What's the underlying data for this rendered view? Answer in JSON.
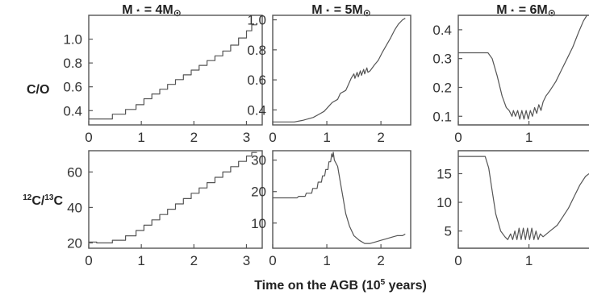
{
  "figure": {
    "xlabel_main": "Time on the AGB (10",
    "xlabel_sup": "5",
    "xlabel_end": " years)",
    "row_labels": [
      {
        "parts": [
          {
            "t": "C/O",
            "sup": false
          }
        ]
      },
      {
        "parts": [
          {
            "t": "12",
            "sup": true
          },
          {
            "t": "C/",
            "sup": false
          },
          {
            "t": "13",
            "sup": true
          },
          {
            "t": "C",
            "sup": false
          }
        ]
      }
    ],
    "column_titles": [
      {
        "pre": "M",
        "star": "⋆",
        "mid": " = 4M",
        "sun": "⊙"
      },
      {
        "pre": "M",
        "star": "⋆",
        "mid": " = 5M",
        "sun": "⊙"
      },
      {
        "pre": "M",
        "star": "⋆",
        "mid": " = 6M",
        "sun": "⊙"
      }
    ]
  },
  "chart_data": [
    {
      "type": "line",
      "panel": "C/O, 4 Msun",
      "xlabel": "Time on the AGB (10^5 years)",
      "ylabel": "C/O",
      "xlim": [
        0,
        3.3
      ],
      "ylim": [
        0.28,
        1.2
      ],
      "xticks": [
        0,
        1,
        2,
        3
      ],
      "yticks": [
        0.4,
        0.6,
        0.8,
        1.0
      ],
      "ytick_labels": [
        "0.4",
        "0.6",
        "0.8",
        "1.0"
      ],
      "series": [
        {
          "kind": "steps",
          "start": [
            0,
            0.33
          ],
          "steps": [
            [
              0.45,
              0.37
            ],
            [
              0.7,
              0.41
            ],
            [
              0.9,
              0.45
            ],
            [
              1.05,
              0.5
            ],
            [
              1.2,
              0.54
            ],
            [
              1.35,
              0.58
            ],
            [
              1.5,
              0.62
            ],
            [
              1.65,
              0.66
            ],
            [
              1.8,
              0.7
            ],
            [
              1.95,
              0.74
            ],
            [
              2.1,
              0.78
            ],
            [
              2.25,
              0.82
            ],
            [
              2.4,
              0.86
            ],
            [
              2.55,
              0.9
            ],
            [
              2.7,
              0.95
            ],
            [
              2.85,
              1.01
            ],
            [
              3.0,
              1.07
            ],
            [
              3.1,
              1.12
            ]
          ],
          "end": 3.2
        }
      ]
    },
    {
      "type": "line",
      "panel": "C/O, 5 Msun",
      "xlabel": "Time on the AGB (10^5 years)",
      "ylabel": "C/O",
      "xlim": [
        0,
        2.55
      ],
      "ylim": [
        0.3,
        1.03
      ],
      "xticks": [
        0,
        1,
        2
      ],
      "yticks": [
        0.4,
        0.6,
        0.8,
        1.0
      ],
      "ytick_labels": [
        "0.4",
        "0.6",
        "0.8",
        "1.0"
      ],
      "series": [
        {
          "kind": "poly",
          "points": [
            [
              0,
              0.32
            ],
            [
              0.4,
              0.32
            ],
            [
              0.55,
              0.33
            ],
            [
              0.75,
              0.35
            ],
            [
              0.85,
              0.37
            ],
            [
              0.95,
              0.39
            ],
            [
              1.05,
              0.43
            ],
            [
              1.1,
              0.45
            ],
            [
              1.2,
              0.47
            ],
            [
              1.25,
              0.51
            ],
            [
              1.35,
              0.53
            ],
            [
              1.4,
              0.57
            ],
            [
              1.45,
              0.61
            ],
            [
              1.5,
              0.64
            ],
            [
              1.52,
              0.61
            ],
            [
              1.56,
              0.65
            ],
            [
              1.58,
              0.62
            ],
            [
              1.62,
              0.66
            ],
            [
              1.64,
              0.63
            ],
            [
              1.68,
              0.67
            ],
            [
              1.7,
              0.64
            ],
            [
              1.74,
              0.68
            ],
            [
              1.76,
              0.65
            ],
            [
              1.8,
              0.66
            ],
            [
              1.88,
              0.7
            ],
            [
              1.95,
              0.73
            ],
            [
              2.02,
              0.78
            ],
            [
              2.1,
              0.83
            ],
            [
              2.18,
              0.88
            ],
            [
              2.25,
              0.93
            ],
            [
              2.32,
              0.97
            ],
            [
              2.4,
              1.0
            ],
            [
              2.45,
              1.01
            ]
          ]
        }
      ]
    },
    {
      "type": "line",
      "panel": "C/O, 6 Msun",
      "xlabel": "Time on the AGB (10^5 years)",
      "ylabel": "C/O",
      "xlim": [
        0,
        1.85
      ],
      "ylim": [
        0.07,
        0.45
      ],
      "xticks": [
        0,
        1
      ],
      "yticks": [
        0.1,
        0.2,
        0.3,
        0.4
      ],
      "ytick_labels": [
        "0.1",
        "0.2",
        "0.3",
        "0.4"
      ],
      "series": [
        {
          "kind": "poly",
          "points": [
            [
              0,
              0.32
            ],
            [
              0.42,
              0.32
            ],
            [
              0.48,
              0.3
            ],
            [
              0.55,
              0.24
            ],
            [
              0.62,
              0.17
            ],
            [
              0.68,
              0.13
            ],
            [
              0.72,
              0.12
            ],
            [
              0.76,
              0.1
            ],
            [
              0.78,
              0.12
            ],
            [
              0.81,
              0.1
            ],
            [
              0.84,
              0.12
            ],
            [
              0.87,
              0.09
            ],
            [
              0.9,
              0.12
            ],
            [
              0.93,
              0.09
            ],
            [
              0.96,
              0.12
            ],
            [
              0.99,
              0.09
            ],
            [
              1.02,
              0.12
            ],
            [
              1.05,
              0.1
            ],
            [
              1.08,
              0.13
            ],
            [
              1.11,
              0.11
            ],
            [
              1.14,
              0.14
            ],
            [
              1.17,
              0.12
            ],
            [
              1.2,
              0.15
            ],
            [
              1.24,
              0.17
            ],
            [
              1.3,
              0.19
            ],
            [
              1.38,
              0.22
            ],
            [
              1.46,
              0.26
            ],
            [
              1.54,
              0.3
            ],
            [
              1.62,
              0.34
            ],
            [
              1.7,
              0.39
            ],
            [
              1.77,
              0.43
            ],
            [
              1.82,
              0.45
            ]
          ]
        }
      ]
    },
    {
      "type": "line",
      "panel": "12C/13C, 4 Msun",
      "xlabel": "Time on the AGB (10^5 years)",
      "ylabel": "12C/13C",
      "xlim": [
        0,
        3.3
      ],
      "ylim": [
        17,
        72
      ],
      "xticks": [
        0,
        1,
        2,
        3
      ],
      "yticks": [
        20,
        40,
        60
      ],
      "ytick_labels": [
        "20",
        "40",
        "60"
      ],
      "series": [
        {
          "kind": "steps",
          "start": [
            0,
            20.5
          ],
          "steps": [
            [
              0.15,
              20
            ],
            [
              0.45,
              21.5
            ],
            [
              0.7,
              24
            ],
            [
              0.9,
              27
            ],
            [
              1.05,
              30
            ],
            [
              1.2,
              33
            ],
            [
              1.35,
              36
            ],
            [
              1.5,
              39
            ],
            [
              1.65,
              42
            ],
            [
              1.8,
              45
            ],
            [
              1.95,
              48
            ],
            [
              2.1,
              51
            ],
            [
              2.25,
              54
            ],
            [
              2.4,
              57
            ],
            [
              2.55,
              60
            ],
            [
              2.7,
              63
            ],
            [
              2.85,
              66
            ],
            [
              3.0,
              69
            ],
            [
              3.1,
              71
            ]
          ],
          "end": 3.2
        }
      ]
    },
    {
      "type": "line",
      "panel": "12C/13C, 5 Msun",
      "xlabel": "Time on the AGB (10^5 years)",
      "ylabel": "12C/13C",
      "xlim": [
        0,
        2.55
      ],
      "ylim": [
        2,
        33
      ],
      "xticks": [
        0,
        1,
        2
      ],
      "yticks": [
        10,
        20,
        30
      ],
      "ytick_labels": [
        "10",
        "20",
        "30"
      ],
      "series": [
        {
          "kind": "poly",
          "points": [
            [
              0,
              18
            ],
            [
              0.45,
              18
            ],
            [
              0.48,
              18.5
            ],
            [
              0.6,
              18.5
            ],
            [
              0.62,
              19.5
            ],
            [
              0.72,
              19.5
            ],
            [
              0.74,
              21
            ],
            [
              0.82,
              21
            ],
            [
              0.84,
              23
            ],
            [
              0.9,
              23
            ],
            [
              0.92,
              25
            ],
            [
              0.96,
              25
            ],
            [
              0.98,
              27
            ],
            [
              1.02,
              27
            ],
            [
              1.04,
              29.5
            ],
            [
              1.07,
              29.5
            ],
            [
              1.09,
              32
            ],
            [
              1.11,
              31
            ],
            [
              1.12,
              32.5
            ],
            [
              1.14,
              30
            ],
            [
              1.2,
              28
            ],
            [
              1.25,
              23
            ],
            [
              1.3,
              18
            ],
            [
              1.35,
              13
            ],
            [
              1.42,
              9
            ],
            [
              1.5,
              6
            ],
            [
              1.6,
              4.5
            ],
            [
              1.7,
              3.5
            ],
            [
              1.8,
              3.5
            ],
            [
              1.9,
              4
            ],
            [
              2.0,
              4.5
            ],
            [
              2.1,
              5
            ],
            [
              2.2,
              5.5
            ],
            [
              2.3,
              6
            ],
            [
              2.4,
              6
            ],
            [
              2.45,
              6.5
            ]
          ]
        }
      ]
    },
    {
      "type": "line",
      "panel": "12C/13C, 6 Msun",
      "xlabel": "Time on the AGB (10^5 years)",
      "ylabel": "12C/13C",
      "xlim": [
        0,
        1.85
      ],
      "ylim": [
        2,
        19
      ],
      "xticks": [
        0,
        1
      ],
      "yticks": [
        5,
        10,
        15
      ],
      "ytick_labels": [
        "5",
        "10",
        "15"
      ],
      "series": [
        {
          "kind": "poly",
          "points": [
            [
              0,
              18
            ],
            [
              0.38,
              18
            ],
            [
              0.43,
              16
            ],
            [
              0.48,
              12
            ],
            [
              0.53,
              8
            ],
            [
              0.6,
              5
            ],
            [
              0.66,
              4
            ],
            [
              0.7,
              3.5
            ],
            [
              0.74,
              4.5
            ],
            [
              0.77,
              3.5
            ],
            [
              0.8,
              5
            ],
            [
              0.83,
              3.5
            ],
            [
              0.86,
              5.5
            ],
            [
              0.89,
              3.5
            ],
            [
              0.92,
              5.5
            ],
            [
              0.95,
              3.5
            ],
            [
              0.98,
              5.5
            ],
            [
              1.01,
              3.5
            ],
            [
              1.04,
              5.5
            ],
            [
              1.07,
              3.5
            ],
            [
              1.1,
              5
            ],
            [
              1.13,
              3.5
            ],
            [
              1.16,
              4.5
            ],
            [
              1.2,
              4
            ],
            [
              1.3,
              5
            ],
            [
              1.4,
              6
            ],
            [
              1.48,
              7.5
            ],
            [
              1.56,
              9
            ],
            [
              1.64,
              11
            ],
            [
              1.72,
              13
            ],
            [
              1.8,
              14.5
            ],
            [
              1.85,
              15
            ]
          ]
        }
      ]
    }
  ]
}
